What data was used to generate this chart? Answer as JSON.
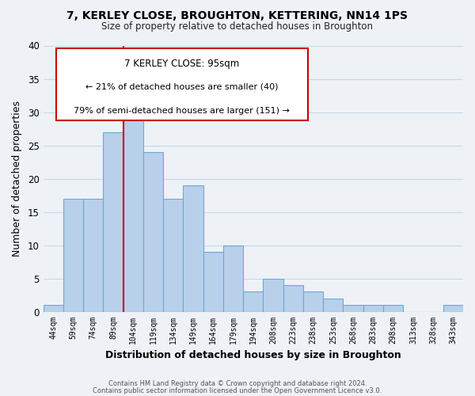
{
  "title": "7, KERLEY CLOSE, BROUGHTON, KETTERING, NN14 1PS",
  "subtitle": "Size of property relative to detached houses in Broughton",
  "xlabel": "Distribution of detached houses by size in Broughton",
  "ylabel": "Number of detached properties",
  "bar_color": "#b8d0ea",
  "bar_edge_color": "#6aaad4",
  "categories": [
    "44sqm",
    "59sqm",
    "74sqm",
    "89sqm",
    "104sqm",
    "119sqm",
    "134sqm",
    "149sqm",
    "164sqm",
    "179sqm",
    "194sqm",
    "208sqm",
    "223sqm",
    "238sqm",
    "253sqm",
    "268sqm",
    "283sqm",
    "298sqm",
    "313sqm",
    "328sqm",
    "343sqm"
  ],
  "values": [
    1,
    17,
    17,
    27,
    30,
    24,
    17,
    19,
    9,
    10,
    3,
    5,
    4,
    3,
    2,
    1,
    1,
    1,
    0,
    0,
    1
  ],
  "ylim": [
    0,
    40
  ],
  "yticks": [
    0,
    5,
    10,
    15,
    20,
    25,
    30,
    35,
    40
  ],
  "property_line_label": "7 KERLEY CLOSE: 95sqm",
  "annotation_line1": "← 21% of detached houses are smaller (40)",
  "annotation_line2": "79% of semi-detached houses are larger (151) →",
  "footer_line1": "Contains HM Land Registry data © Crown copyright and database right 2024.",
  "footer_line2": "Contains public sector information licensed under the Open Government Licence v3.0.",
  "background_color": "#eef2f7",
  "grid_color": "#d8e4f0"
}
